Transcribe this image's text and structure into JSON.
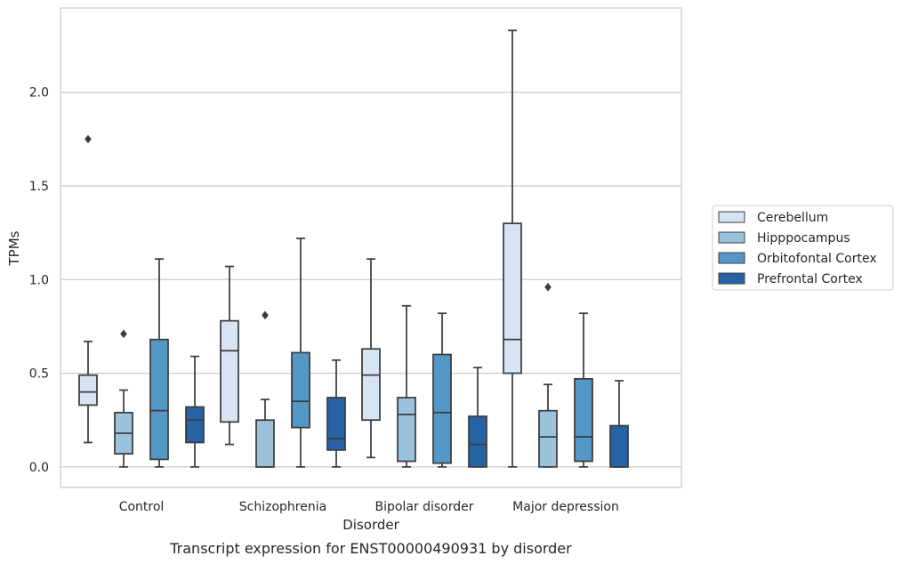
{
  "chart_data": {
    "type": "box",
    "title": "",
    "caption": "Transcript expression for ENST00000490931 by disorder",
    "xlabel": "Disorder",
    "ylabel": "TPMs",
    "ylim": [
      -0.11,
      2.45
    ],
    "yticks": [
      "0.0",
      "0.5",
      "1.0",
      "1.5",
      "2.0"
    ],
    "grid": "horizontal",
    "legend_position": "right",
    "categories": [
      "Control",
      "Schizophrenia",
      "Bipolar disorder",
      "Major depression"
    ],
    "series": [
      {
        "name": "Cerebellum",
        "color": "#d6e4f3",
        "boxes": [
          {
            "whisker_low": 0.13,
            "q1": 0.33,
            "median": 0.4,
            "q3": 0.49,
            "whisker_high": 0.67,
            "outliers": [
              1.75
            ]
          },
          {
            "whisker_low": 0.12,
            "q1": 0.24,
            "median": 0.62,
            "q3": 0.78,
            "whisker_high": 1.07,
            "outliers": []
          },
          {
            "whisker_low": 0.05,
            "q1": 0.25,
            "median": 0.49,
            "q3": 0.63,
            "whisker_high": 1.11,
            "outliers": []
          },
          {
            "whisker_low": 0.0,
            "q1": 0.5,
            "median": 0.68,
            "q3": 1.3,
            "whisker_high": 2.33,
            "outliers": []
          }
        ]
      },
      {
        "name": "Hipppocampus",
        "color": "#9ac2dd",
        "boxes": [
          {
            "whisker_low": 0.0,
            "q1": 0.07,
            "median": 0.18,
            "q3": 0.29,
            "whisker_high": 0.41,
            "outliers": [
              0.71
            ]
          },
          {
            "whisker_low": 0.0,
            "q1": 0.0,
            "median": 0.0,
            "q3": 0.25,
            "whisker_high": 0.36,
            "outliers": [
              0.81
            ]
          },
          {
            "whisker_low": 0.0,
            "q1": 0.03,
            "median": 0.28,
            "q3": 0.37,
            "whisker_high": 0.86,
            "outliers": []
          },
          {
            "whisker_low": 0.0,
            "q1": 0.0,
            "median": 0.16,
            "q3": 0.3,
            "whisker_high": 0.44,
            "outliers": [
              0.96
            ]
          }
        ]
      },
      {
        "name": "Orbitofontal Cortex",
        "color": "#5597c6",
        "boxes": [
          {
            "whisker_low": 0.0,
            "q1": 0.04,
            "median": 0.3,
            "q3": 0.68,
            "whisker_high": 1.11,
            "outliers": []
          },
          {
            "whisker_low": 0.0,
            "q1": 0.21,
            "median": 0.35,
            "q3": 0.61,
            "whisker_high": 1.22,
            "outliers": []
          },
          {
            "whisker_low": 0.0,
            "q1": 0.02,
            "median": 0.29,
            "q3": 0.6,
            "whisker_high": 0.82,
            "outliers": []
          },
          {
            "whisker_low": 0.0,
            "q1": 0.03,
            "median": 0.16,
            "q3": 0.47,
            "whisker_high": 0.82,
            "outliers": []
          }
        ]
      },
      {
        "name": "Prefrontal Cortex",
        "color": "#2563a5",
        "boxes": [
          {
            "whisker_low": 0.0,
            "q1": 0.13,
            "median": 0.25,
            "q3": 0.32,
            "whisker_high": 0.59,
            "outliers": []
          },
          {
            "whisker_low": 0.0,
            "q1": 0.09,
            "median": 0.15,
            "q3": 0.37,
            "whisker_high": 0.57,
            "outliers": []
          },
          {
            "whisker_low": 0.0,
            "q1": 0.0,
            "median": 0.12,
            "q3": 0.27,
            "whisker_high": 0.53,
            "outliers": []
          },
          {
            "whisker_low": 0.0,
            "q1": 0.0,
            "median": 0.0,
            "q3": 0.22,
            "whisker_high": 0.46,
            "outliers": []
          }
        ]
      }
    ]
  }
}
